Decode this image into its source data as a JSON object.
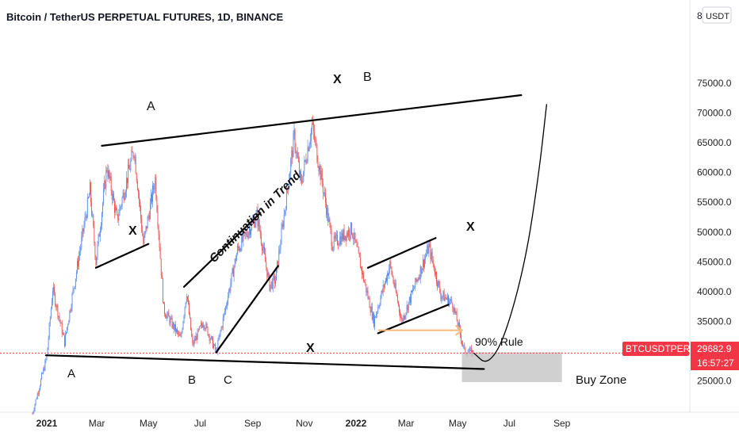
{
  "header": {
    "title": "Bitcoin / TetherUS PERPETUAL FUTURES, 1D, BINANCE"
  },
  "price_axis": {
    "currency_button": "USDT",
    "top_partial": "8"
  },
  "price_tag": {
    "symbol": "BTCUSDTPERP",
    "price": "29682.9",
    "countdown": "16:57:27",
    "color": "#f23645"
  },
  "annotations": {
    "top_A": "A",
    "top_X": "X",
    "top_B": "B",
    "left_X": "X",
    "continuation": "Continuation in Trend",
    "right_X": "X",
    "bottom_X": "X",
    "bottom_A": "A",
    "bottom_B": "B",
    "bottom_C": "C",
    "rule_90": "90% Rule",
    "buy_zone": "Buy Zone"
  },
  "colors": {
    "up_candle": "#5b8def",
    "down_candle": "#ef5350",
    "trendline": "#000000",
    "rule_arrow": "#f7b77a",
    "buy_zone_fill": "#c8c8c8",
    "price_line": "#f23645"
  },
  "chart_data": {
    "type": "candlestick",
    "title": "Bitcoin / TetherUS PERPETUAL FUTURES, 1D, BINANCE",
    "y_ticks": [
      25000,
      30000,
      35000,
      40000,
      45000,
      50000,
      55000,
      60000,
      65000,
      70000,
      75000
    ],
    "y_tick_labels": [
      "25000.0",
      "30000.0",
      "35000.0",
      "40000.0",
      "45000.0",
      "50000.0",
      "55000.0",
      "60000.0",
      "65000.0",
      "70000.0",
      "75000.0"
    ],
    "x_tick_labels": [
      "2021",
      "Mar",
      "May",
      "Jul",
      "Sep",
      "Nov",
      "2022",
      "Mar",
      "May",
      "Jul",
      "Sep"
    ],
    "x_tick_dates": [
      "2021-01-01",
      "2021-03-01",
      "2021-05-01",
      "2021-07-01",
      "2021-09-01",
      "2021-11-01",
      "2022-01-01",
      "2022-03-01",
      "2022-05-01",
      "2022-07-01",
      "2022-09-01"
    ],
    "last_price": 29682.9,
    "price_path": [
      [
        "2020-12-15",
        19500
      ],
      [
        "2021-01-01",
        29000
      ],
      [
        "2021-01-08",
        40500
      ],
      [
        "2021-01-22",
        31500
      ],
      [
        "2021-02-08",
        46000
      ],
      [
        "2021-02-21",
        57000
      ],
      [
        "2021-02-28",
        45000
      ],
      [
        "2021-03-13",
        61000
      ],
      [
        "2021-03-25",
        52000
      ],
      [
        "2021-04-14",
        64000
      ],
      [
        "2021-04-25",
        48000
      ],
      [
        "2021-05-09",
        59000
      ],
      [
        "2021-05-19",
        37000
      ],
      [
        "2021-06-08",
        32000
      ],
      [
        "2021-06-15",
        40000
      ],
      [
        "2021-06-22",
        31000
      ],
      [
        "2021-07-05",
        35000
      ],
      [
        "2021-07-20",
        29800
      ],
      [
        "2021-08-14",
        47000
      ],
      [
        "2021-09-06",
        52800
      ],
      [
        "2021-09-21",
        41000
      ],
      [
        "2021-09-28",
        42000
      ],
      [
        "2021-10-20",
        66000
      ],
      [
        "2021-10-28",
        58000
      ],
      [
        "2021-11-10",
        68000
      ],
      [
        "2021-11-26",
        55000
      ],
      [
        "2021-12-04",
        48000
      ],
      [
        "2021-12-27",
        50500
      ],
      [
        "2022-01-22",
        35000
      ],
      [
        "2022-02-10",
        44500
      ],
      [
        "2022-02-24",
        35000
      ],
      [
        "2022-03-28",
        47500
      ],
      [
        "2022-04-11",
        39500
      ],
      [
        "2022-04-25",
        38000
      ],
      [
        "2022-05-09",
        30000
      ],
      [
        "2022-05-20",
        29682.9
      ]
    ],
    "projection_path": [
      [
        "2022-05-20",
        29682.9
      ],
      [
        "2022-06-05",
        27600
      ],
      [
        "2022-06-25",
        32000
      ],
      [
        "2022-07-20",
        45000
      ],
      [
        "2022-08-05",
        60000
      ],
      [
        "2022-08-14",
        71500
      ]
    ],
    "trendlines": [
      {
        "name": "upper resistance",
        "from": [
          "2021-03-07",
          64500
        ],
        "to": [
          "2022-07-15",
          73000
        ]
      },
      {
        "name": "lower support",
        "from": [
          "2020-12-31",
          29300
        ],
        "to": [
          "2022-06-01",
          27000
        ]
      },
      {
        "name": "support Mar-Apr 2021",
        "from": [
          "2021-02-28",
          44000
        ],
        "to": [
          "2021-05-01",
          48000
        ]
      },
      {
        "name": "continuation channel top",
        "from": [
          "2021-06-12",
          40800
        ],
        "to": [
          "2021-09-10",
          53200
        ]
      },
      {
        "name": "continuation channel bottom",
        "from": [
          "2021-07-20",
          29800
        ],
        "to": [
          "2021-10-01",
          44300
        ]
      },
      {
        "name": "resistance Jan-Apr 2022",
        "from": [
          "2022-01-15",
          44000
        ],
        "to": [
          "2022-04-05",
          49000
        ]
      },
      {
        "name": "support Feb-Apr 2022",
        "from": [
          "2022-01-27",
          33000
        ],
        "to": [
          "2022-04-20",
          37800
        ]
      }
    ],
    "rule_arrow": {
      "from": [
        "2022-01-27",
        33500
      ],
      "to": [
        "2022-05-06",
        33500
      ]
    },
    "buy_zone": {
      "x_from": "2022-05-06",
      "x_to": "2022-09-01",
      "y_top": 29800,
      "y_bottom": 24800
    }
  }
}
